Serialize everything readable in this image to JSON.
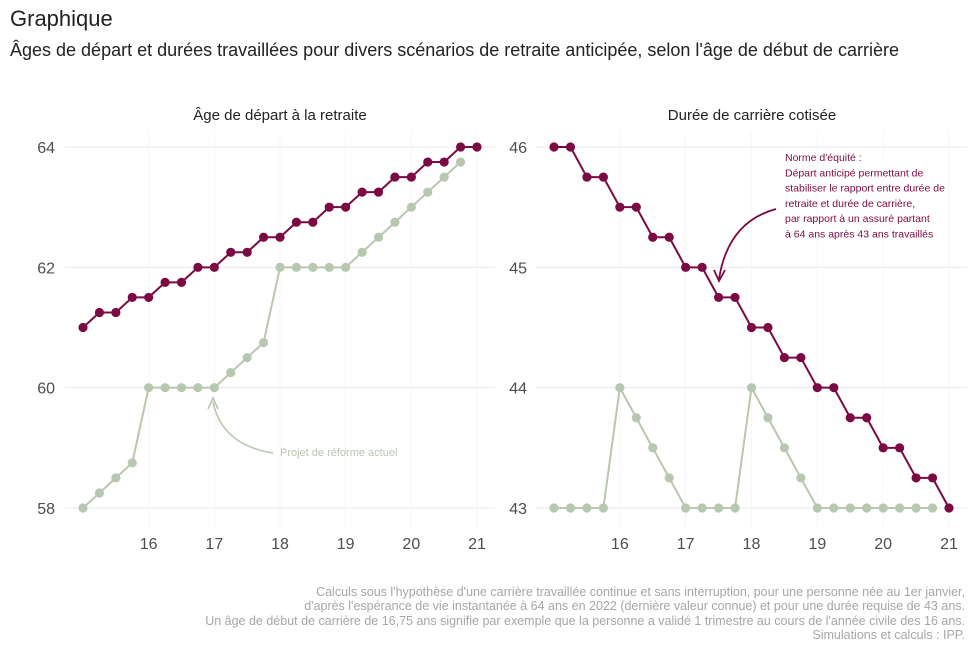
{
  "header": {
    "title": "Graphique",
    "subtitle": "Âges de départ et durées travaillées pour divers scénarios de retraite anticipée, selon l'âge de début de carrière"
  },
  "footer": {
    "lines": [
      "Calculs sous l'hypothèse d'une carrière travaillée continue et sans interruption, pour une personne née au 1er janvier,",
      "d'après l'espérance de vie instantanée à 64 ans en 2022 (dernière valeur connue) et pour une durée requise de 43 ans.",
      "Un âge de début de carrière de 16,75 ans signifie par exemple que la personne a validé 1 trimestre au cours de l'année civile des 16 ans.",
      "Simulations et calculs : IPP."
    ]
  },
  "colors": {
    "equity": "#7b0a42",
    "reform": "#b8c7b0",
    "grid": "#e8e8e8",
    "text": "#4d4d4d"
  },
  "chart_data": [
    {
      "type": "line",
      "title": "Âge de départ à la retraite",
      "xlim": [
        15,
        21
      ],
      "ylim": [
        58,
        64
      ],
      "x_ticks": [
        "16",
        "17",
        "18",
        "19",
        "20",
        "21"
      ],
      "y_ticks": [
        "58",
        "60",
        "62",
        "64"
      ],
      "x": [
        15,
        15.25,
        15.5,
        15.75,
        16,
        16.25,
        16.5,
        16.75,
        17,
        17.25,
        17.5,
        17.75,
        18,
        18.25,
        18.5,
        18.75,
        19,
        19.25,
        19.5,
        19.75,
        20,
        20.25,
        20.5,
        20.75,
        21
      ],
      "series": [
        {
          "key": "equity",
          "values": [
            61,
            61.25,
            61.25,
            61.5,
            61.5,
            61.75,
            61.75,
            62,
            62,
            62.25,
            62.25,
            62.5,
            62.5,
            62.75,
            62.75,
            63,
            63,
            63.25,
            63.25,
            63.5,
            63.5,
            63.75,
            63.75,
            64,
            64
          ]
        },
        {
          "key": "reform",
          "values": [
            58,
            58.25,
            58.5,
            58.75,
            60,
            60,
            60,
            60,
            60,
            60.25,
            60.5,
            60.75,
            62,
            62,
            62,
            62,
            62,
            62.25,
            62.5,
            62.75,
            63,
            63.25,
            63.5,
            63.75,
            null
          ]
        }
      ],
      "annotation": {
        "text": "Projet de réforme actuel"
      }
    },
    {
      "type": "line",
      "title": "Durée de carrière cotisée",
      "xlim": [
        15,
        21
      ],
      "ylim": [
        43,
        46
      ],
      "x_ticks": [
        "16",
        "17",
        "18",
        "19",
        "20",
        "21"
      ],
      "y_ticks": [
        "43",
        "44",
        "45",
        "46"
      ],
      "x": [
        15,
        15.25,
        15.5,
        15.75,
        16,
        16.25,
        16.5,
        16.75,
        17,
        17.25,
        17.5,
        17.75,
        18,
        18.25,
        18.5,
        18.75,
        19,
        19.25,
        19.5,
        19.75,
        20,
        20.25,
        20.5,
        20.75,
        21
      ],
      "series": [
        {
          "key": "equity",
          "values": [
            46,
            46,
            45.75,
            45.75,
            45.5,
            45.5,
            45.25,
            45.25,
            45,
            45,
            44.75,
            44.75,
            44.5,
            44.5,
            44.25,
            44.25,
            44,
            44,
            43.75,
            43.75,
            43.5,
            43.5,
            43.25,
            43.25,
            43
          ]
        },
        {
          "key": "reform",
          "values": [
            43,
            43,
            43,
            43,
            44,
            43.75,
            43.5,
            43.25,
            43,
            43,
            43,
            43,
            44,
            43.75,
            43.5,
            43.25,
            43,
            43,
            43,
            43,
            43,
            43,
            43,
            43,
            null
          ]
        }
      ],
      "annotation": {
        "lines": [
          "Norme d'équité :",
          "Départ anticipé permettant de",
          "stabiliser le rapport entre durée de",
          "retraite et durée de carrière,",
          "par rapport à un assuré partant",
          "à 64 ans après 43 ans travaillés"
        ]
      }
    }
  ]
}
